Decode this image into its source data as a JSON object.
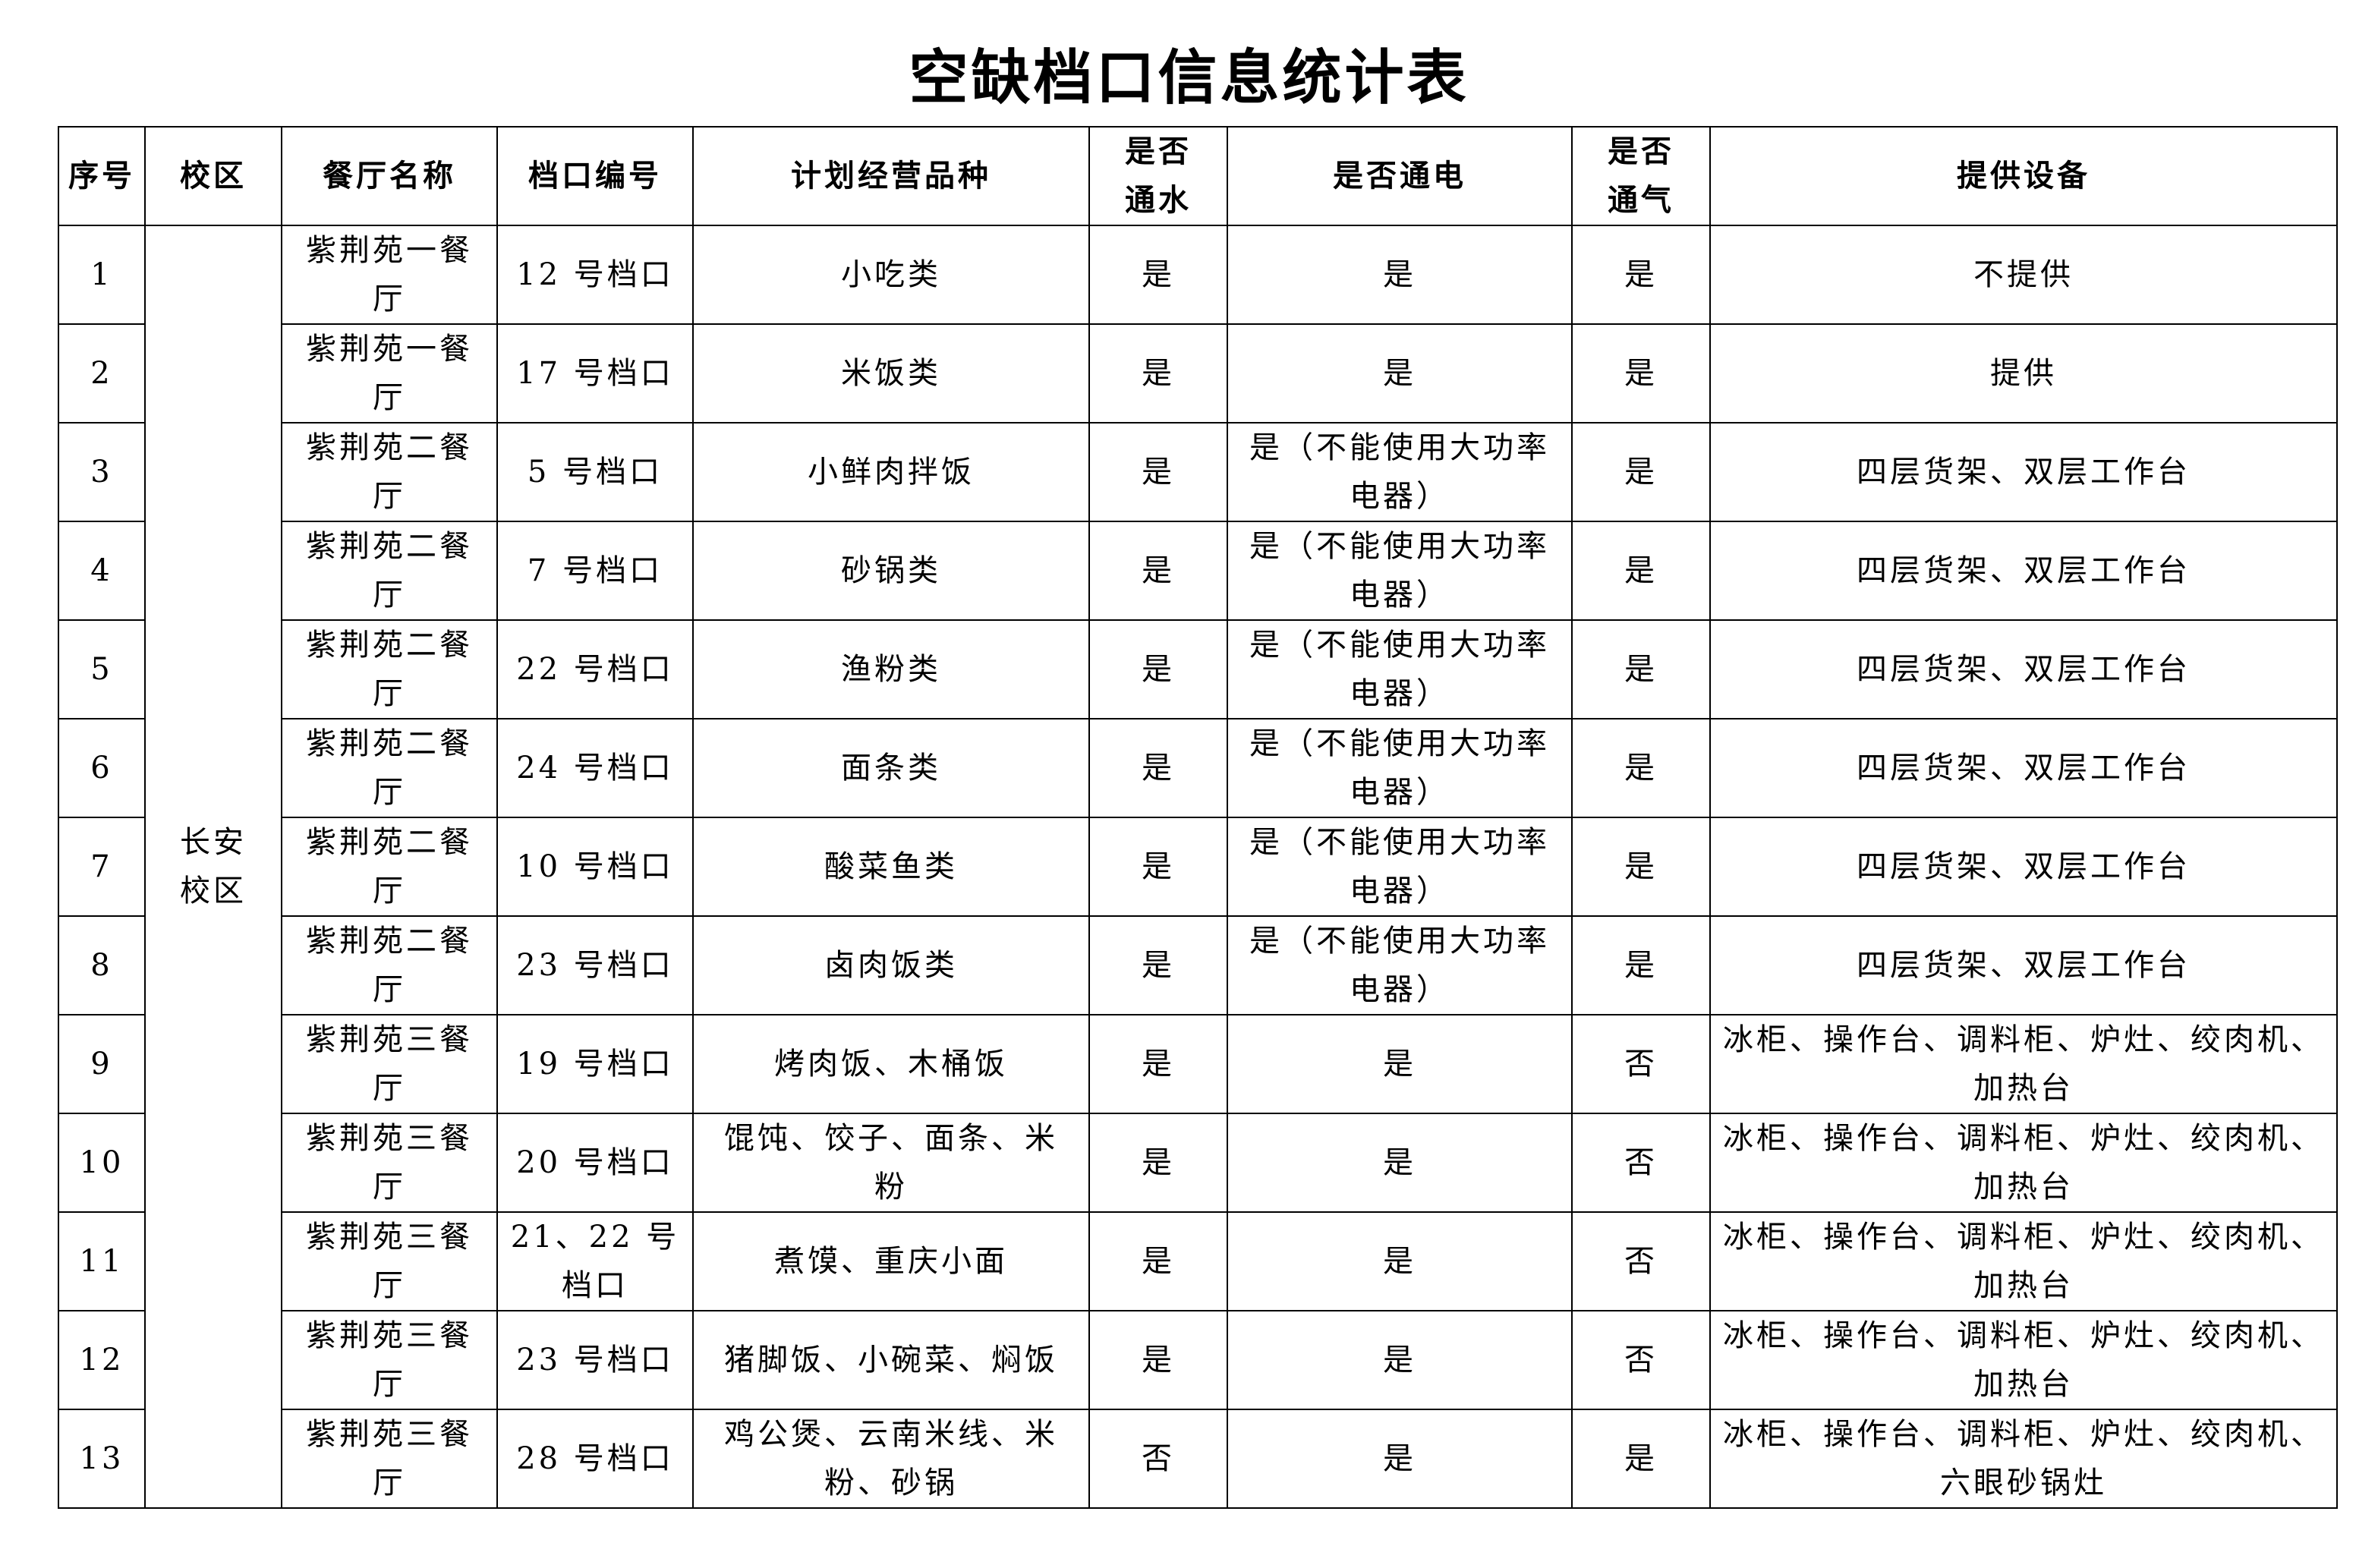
{
  "title": "空缺档口信息统计表",
  "headers": [
    "序号",
    "校区",
    "餐厅名称",
    "档口编号",
    "计划经营品种",
    "是否通水",
    "是否通电",
    "是否通气",
    "提供设备"
  ],
  "campus": "长安校区",
  "rows": [
    {
      "no": "1",
      "restaurant": "紫荆苑一餐厅",
      "stall": "12 号档口",
      "variety": "小吃类",
      "water": "是",
      "power": "是",
      "gas": "是",
      "equipment": "不提供"
    },
    {
      "no": "2",
      "restaurant": "紫荆苑一餐厅",
      "stall": "17 号档口",
      "variety": "米饭类",
      "water": "是",
      "power": "是",
      "gas": "是",
      "equipment": "提供"
    },
    {
      "no": "3",
      "restaurant": "紫荆苑二餐厅",
      "stall": "5 号档口",
      "variety": "小鲜肉拌饭",
      "water": "是",
      "power": "是（不能使用大功率电器）",
      "gas": "是",
      "equipment": "四层货架、双层工作台"
    },
    {
      "no": "4",
      "restaurant": "紫荆苑二餐厅",
      "stall": "7 号档口",
      "variety": "砂锅类",
      "water": "是",
      "power": "是（不能使用大功率电器）",
      "gas": "是",
      "equipment": "四层货架、双层工作台"
    },
    {
      "no": "5",
      "restaurant": "紫荆苑二餐厅",
      "stall": "22 号档口",
      "variety": "渔粉类",
      "water": "是",
      "power": "是（不能使用大功率电器）",
      "gas": "是",
      "equipment": "四层货架、双层工作台"
    },
    {
      "no": "6",
      "restaurant": "紫荆苑二餐厅",
      "stall": "24 号档口",
      "variety": "面条类",
      "water": "是",
      "power": "是（不能使用大功率电器）",
      "gas": "是",
      "equipment": "四层货架、双层工作台"
    },
    {
      "no": "7",
      "restaurant": "紫荆苑二餐厅",
      "stall": "10 号档口",
      "variety": "酸菜鱼类",
      "water": "是",
      "power": "是（不能使用大功率电器）",
      "gas": "是",
      "equipment": "四层货架、双层工作台"
    },
    {
      "no": "8",
      "restaurant": "紫荆苑二餐厅",
      "stall": "23 号档口",
      "variety": "卤肉饭类",
      "water": "是",
      "power": "是（不能使用大功率电器）",
      "gas": "是",
      "equipment": "四层货架、双层工作台"
    },
    {
      "no": "9",
      "restaurant": "紫荆苑三餐厅",
      "stall": "19 号档口",
      "variety": "烤肉饭、木桶饭",
      "water": "是",
      "power": "是",
      "gas": "否",
      "equipment": "冰柜、操作台、调料柜、炉灶、绞肉机、加热台"
    },
    {
      "no": "10",
      "restaurant": "紫荆苑三餐厅",
      "stall": "20 号档口",
      "variety": "馄饨、饺子、面条、米粉",
      "water": "是",
      "power": "是",
      "gas": "否",
      "equipment": "冰柜、操作台、调料柜、炉灶、绞肉机、加热台"
    },
    {
      "no": "11",
      "restaurant": "紫荆苑三餐厅",
      "stall": "21、22 号档口",
      "variety": "煮馍、重庆小面",
      "water": "是",
      "power": "是",
      "gas": "否",
      "equipment": "冰柜、操作台、调料柜、炉灶、绞肉机、加热台"
    },
    {
      "no": "12",
      "restaurant": "紫荆苑三餐厅",
      "stall": "23 号档口",
      "variety": "猪脚饭、小碗菜、焖饭",
      "water": "是",
      "power": "是",
      "gas": "否",
      "equipment": "冰柜、操作台、调料柜、炉灶、绞肉机、加热台"
    },
    {
      "no": "13",
      "restaurant": "紫荆苑三餐厅",
      "stall": "28 号档口",
      "variety": "鸡公煲、云南米线、米粉、砂锅",
      "water": "否",
      "power": "是",
      "gas": "是",
      "equipment": "冰柜、操作台、调料柜、炉灶、绞肉机、六眼砂锅灶"
    }
  ]
}
